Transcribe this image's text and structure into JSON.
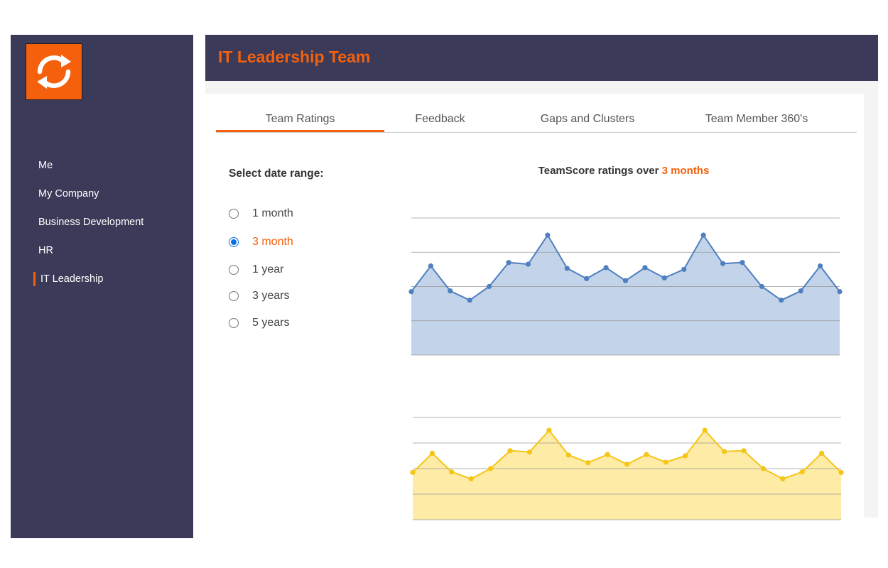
{
  "app": {
    "logo_icon": "refresh-icon",
    "accent_color": "#f4600c",
    "sidebar_color": "#3b3a58"
  },
  "sidebar": {
    "items": [
      {
        "label": "Me",
        "active": false
      },
      {
        "label": "My Company",
        "active": false
      },
      {
        "label": "Business Development",
        "active": false
      },
      {
        "label": "HR",
        "active": false
      },
      {
        "label": "IT Leadership",
        "active": true
      }
    ]
  },
  "header": {
    "title": "IT Leadership Team"
  },
  "tabs": [
    {
      "label": "Team Ratings",
      "active": true
    },
    {
      "label": "Feedback",
      "active": false
    },
    {
      "label": "Gaps and Clusters",
      "active": false
    },
    {
      "label": "Team Member 360's",
      "active": false
    }
  ],
  "date_range": {
    "label": "Select date range:",
    "options": [
      {
        "label": "1 month",
        "selected": false
      },
      {
        "label": "3 month",
        "selected": true
      },
      {
        "label": "1 year",
        "selected": false
      },
      {
        "label": "3 years",
        "selected": false
      },
      {
        "label": "5 years",
        "selected": false
      }
    ]
  },
  "chart_title": {
    "prefix": "TeamScore ratings over ",
    "highlight": "3 months"
  },
  "chart_data": [
    {
      "type": "area",
      "color": "#4f7fbf",
      "fill": "#c3d4ea",
      "grid": true,
      "ylim": [
        0,
        4
      ],
      "x": [
        1,
        2,
        3,
        4,
        5,
        6,
        7,
        8,
        9,
        10,
        11,
        12,
        13,
        14,
        15,
        16,
        17,
        18,
        19,
        20,
        21,
        22,
        23
      ],
      "values": [
        1.85,
        2.6,
        1.87,
        1.6,
        2.0,
        2.7,
        2.65,
        3.5,
        2.53,
        2.23,
        2.55,
        2.17,
        2.55,
        2.25,
        2.5,
        3.5,
        2.67,
        2.7,
        2.0,
        1.6,
        1.87,
        2.6,
        1.85
      ]
    },
    {
      "type": "area",
      "color": "#f5c518",
      "fill": "#fdeba6",
      "grid": true,
      "ylim": [
        0,
        4
      ],
      "x": [
        1,
        2,
        3,
        4,
        5,
        6,
        7,
        8,
        9,
        10,
        11,
        12,
        13,
        14,
        15,
        16,
        17,
        18,
        19,
        20,
        21,
        22,
        23
      ],
      "values": [
        1.85,
        2.6,
        1.87,
        1.6,
        2.0,
        2.7,
        2.65,
        3.5,
        2.53,
        2.23,
        2.55,
        2.17,
        2.55,
        2.25,
        2.5,
        3.5,
        2.67,
        2.7,
        2.0,
        1.6,
        1.87,
        2.6,
        1.85
      ]
    }
  ]
}
